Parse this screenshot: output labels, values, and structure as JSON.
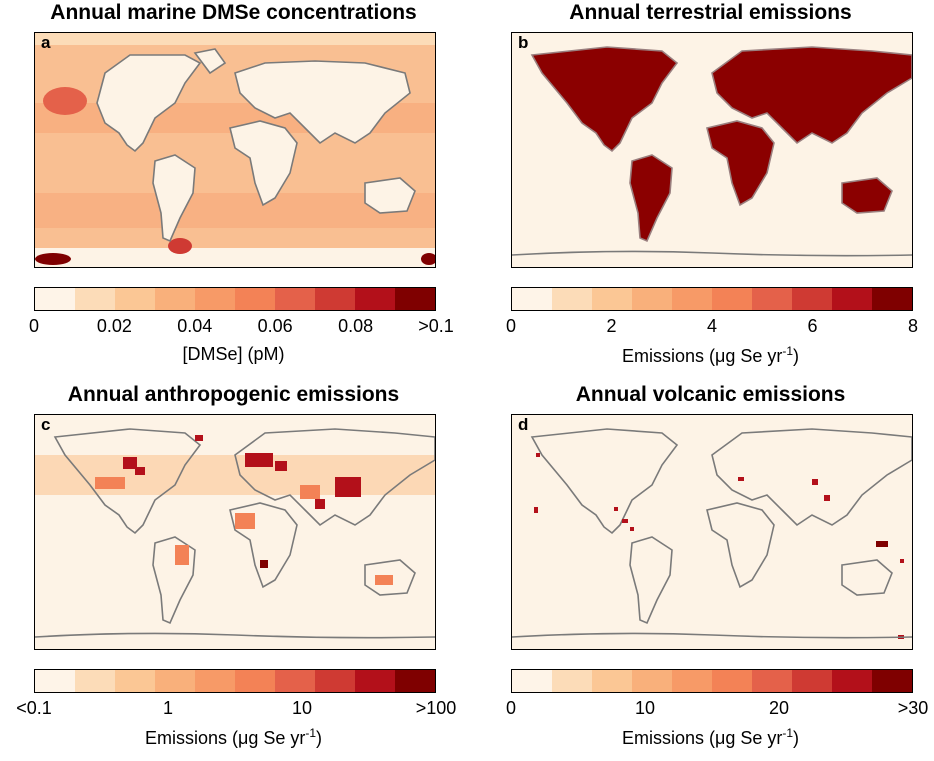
{
  "colors": {
    "land": "#fdf3e6",
    "ocean_base": "#f8c79f",
    "coast": "#7a7a7a",
    "high": "#8b0000",
    "scale": [
      "#fef4e8",
      "#fcdcb8",
      "#fbc795",
      "#f9b07b",
      "#f79a67",
      "#f38256",
      "#e4614a",
      "#cf3a33",
      "#b3101a",
      "#7f0000"
    ]
  },
  "panels": [
    {
      "id": "a",
      "title": "Annual marine DMSe concentrations",
      "letter": "a",
      "colorbar_labels": [
        "0",
        "0.02",
        "0.04",
        "0.06",
        "0.08",
        ">0.1"
      ],
      "unit_text": "[DMSe] (pM)",
      "unit_sup": ""
    },
    {
      "id": "b",
      "title": "Annual terrestrial emissions",
      "letter": "b",
      "colorbar_labels": [
        "0",
        "2",
        "4",
        "6",
        "8"
      ],
      "unit_text": "Emissions (μg Se yr",
      "unit_sup": "-1",
      "unit_close": ")"
    },
    {
      "id": "c",
      "title": "Annual anthropogenic emissions",
      "letter": "c",
      "colorbar_labels": [
        "<0.1",
        "1",
        "10",
        ">100"
      ],
      "unit_text": "Emissions (μg Se yr",
      "unit_sup": "-1",
      "unit_close": ")"
    },
    {
      "id": "d",
      "title": "Annual volcanic emissions",
      "letter": "d",
      "colorbar_labels": [
        "0",
        "10",
        "20",
        ">30"
      ],
      "unit_text": "Emissions (μg Se yr",
      "unit_sup": "-1",
      "unit_close": ")"
    }
  ]
}
